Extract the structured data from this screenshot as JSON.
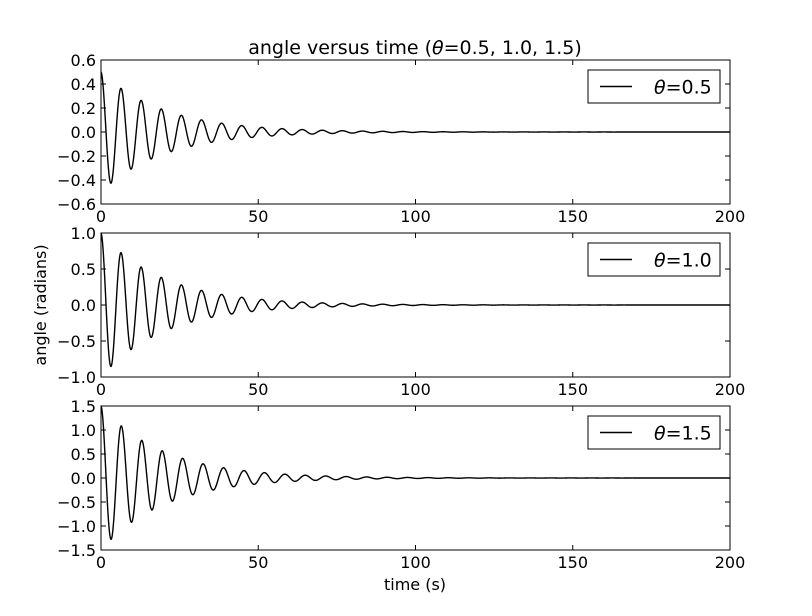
{
  "figure": {
    "title": "angle versus time (θ=0.5, 1.0, 1.5)",
    "title_parts": [
      "angle versus time (",
      "θ",
      "=0.5, 1.0, 1.5)"
    ],
    "xlabel": "time (s)",
    "ylabel": "angle (radians)"
  },
  "chart_data": [
    {
      "type": "line",
      "title": "angle versus time (θ=0.5, 1.0, 1.5)",
      "xlabel": "",
      "ylabel": "",
      "xlim": [
        0,
        200
      ],
      "ylim": [
        -0.6,
        0.6
      ],
      "xticks": [
        0,
        50,
        100,
        150,
        200
      ],
      "xtick_labels": [
        "0",
        "50",
        "100",
        "150",
        "200"
      ],
      "yticks": [
        -0.6,
        -0.4,
        -0.2,
        0.0,
        0.2,
        0.4,
        0.6
      ],
      "ytick_labels": [
        "−0.6",
        "−0.4",
        "−0.2",
        "0.0",
        "0.2",
        "0.4",
        "0.6"
      ],
      "grid": false,
      "legend_position": "top-right",
      "series": [
        {
          "name": "θ=0.5",
          "name_symbol": "θ",
          "name_value": "=0.5",
          "color": "#000000",
          "initial_angle": 0.5,
          "period_s": 6.4,
          "decay_time_s": 20,
          "x": [
            0,
            3.2,
            6.4,
            9.6,
            12.8,
            16,
            19.2,
            22.4,
            25.6,
            28.8,
            32,
            38.4,
            44.8,
            51.2,
            64,
            76.8,
            96,
            128,
            160,
            200
          ],
          "y": [
            0.5,
            -0.42,
            0.36,
            -0.31,
            0.26,
            -0.22,
            0.18,
            -0.16,
            0.14,
            -0.12,
            0.1,
            0.07,
            0.05,
            0.04,
            0.02,
            0.01,
            0.004,
            0.0,
            0.0,
            0.0
          ]
        }
      ]
    },
    {
      "type": "line",
      "title": "",
      "xlabel": "",
      "ylabel": "angle (radians)",
      "xlim": [
        0,
        200
      ],
      "ylim": [
        -1.0,
        1.0
      ],
      "xticks": [
        0,
        50,
        100,
        150,
        200
      ],
      "xtick_labels": [
        "0",
        "50",
        "100",
        "150",
        "200"
      ],
      "yticks": [
        -1.0,
        -0.5,
        0.0,
        0.5,
        1.0
      ],
      "ytick_labels": [
        "−1.0",
        "−0.5",
        "0.0",
        "0.5",
        "1.0"
      ],
      "grid": false,
      "legend_position": "top-right",
      "series": [
        {
          "name": "θ=1.0",
          "name_symbol": "θ",
          "name_value": "=1.0",
          "color": "#000000",
          "initial_angle": 1.0,
          "period_s": 6.4,
          "decay_time_s": 20,
          "x": [
            0,
            3.2,
            6.4,
            9.6,
            12.8,
            16,
            19.2,
            22.4,
            25.6,
            28.8,
            32,
            38.4,
            44.8,
            51.2,
            64,
            76.8,
            96,
            128,
            160,
            200
          ],
          "y": [
            1.0,
            -0.85,
            0.71,
            -0.6,
            0.51,
            -0.44,
            0.37,
            -0.32,
            0.27,
            -0.24,
            0.2,
            0.15,
            0.11,
            0.08,
            0.04,
            0.02,
            0.008,
            0.0,
            0.0,
            0.0
          ]
        }
      ]
    },
    {
      "type": "line",
      "title": "",
      "xlabel": "time (s)",
      "ylabel": "",
      "xlim": [
        0,
        200
      ],
      "ylim": [
        -1.5,
        1.5
      ],
      "xticks": [
        0,
        50,
        100,
        150,
        200
      ],
      "xtick_labels": [
        "0",
        "50",
        "100",
        "150",
        "200"
      ],
      "yticks": [
        -1.5,
        -1.0,
        -0.5,
        0.0,
        0.5,
        1.0,
        1.5
      ],
      "ytick_labels": [
        "−1.5",
        "−1.0",
        "−0.5",
        "0.0",
        "0.5",
        "1.0",
        "1.5"
      ],
      "grid": false,
      "legend_position": "top-right",
      "series": [
        {
          "name": "θ=1.5",
          "name_symbol": "θ",
          "name_value": "=1.5",
          "color": "#000000",
          "initial_angle": 1.5,
          "period_s": 6.5,
          "decay_time_s": 20,
          "x": [
            0,
            3.3,
            6.5,
            9.8,
            13,
            16.3,
            19.5,
            22.8,
            26,
            29.3,
            32.5,
            39,
            45.5,
            52,
            65,
            78,
            97.5,
            130,
            162.5,
            200
          ],
          "y": [
            1.5,
            -1.25,
            1.02,
            -0.87,
            0.72,
            -0.62,
            0.52,
            -0.45,
            0.39,
            -0.33,
            0.28,
            0.2,
            0.15,
            0.11,
            0.06,
            0.03,
            0.012,
            0.002,
            0.0,
            0.0
          ]
        }
      ]
    }
  ]
}
